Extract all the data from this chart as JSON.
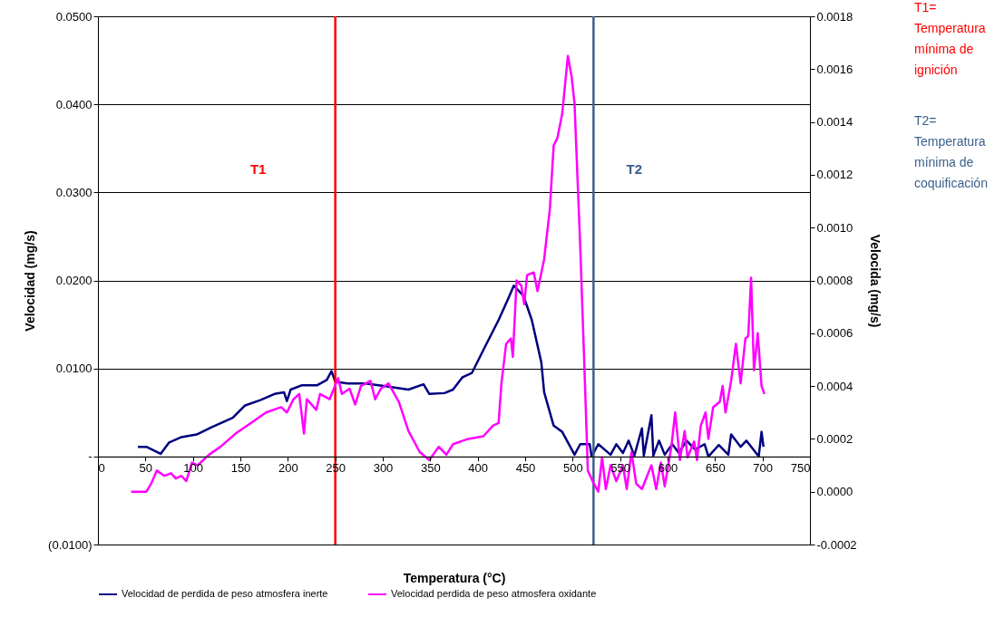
{
  "chart_data": {
    "type": "line",
    "xlabel": "Temperatura (°C)",
    "ylabel": "Velocidad (mg/s)",
    "y2label": "Velocida (mg/s)",
    "xlim": [
      0,
      750
    ],
    "xticks": [
      0,
      50,
      100,
      150,
      200,
      250,
      300,
      350,
      400,
      450,
      500,
      550,
      600,
      650,
      700,
      750
    ],
    "ylim": [
      -0.01,
      0.05
    ],
    "yticks": [
      {
        "value": -0.01,
        "label": "(0.0100)"
      },
      {
        "value": 0,
        "label": "-"
      },
      {
        "value": 0.01,
        "label": "0.0100"
      },
      {
        "value": 0.02,
        "label": "0.0200"
      },
      {
        "value": 0.03,
        "label": "0.0300"
      },
      {
        "value": 0.04,
        "label": "0.0400"
      },
      {
        "value": 0.05,
        "label": "0.0500"
      }
    ],
    "y2lim": [
      -0.0002,
      0.0018
    ],
    "y2ticks": [
      {
        "value": -0.0002,
        "label": "-0.0002"
      },
      {
        "value": 0,
        "label": "0.0000"
      },
      {
        "value": 0.0002,
        "label": "0.0002"
      },
      {
        "value": 0.0004,
        "label": "0.0004"
      },
      {
        "value": 0.0006,
        "label": "0.0006"
      },
      {
        "value": 0.0008,
        "label": "0.0008"
      },
      {
        "value": 0.001,
        "label": "0.0010"
      },
      {
        "value": 0.0012,
        "label": "0.0012"
      },
      {
        "value": 0.0014,
        "label": "0.0014"
      },
      {
        "value": 0.0016,
        "label": "0.0016"
      },
      {
        "value": 0.0018,
        "label": "0.0018"
      }
    ],
    "grid": "y",
    "legend": "bottom",
    "marker": "none",
    "line_style": "solid",
    "series": [
      {
        "name": "Velocidad de perdida de peso atmosfera inerte",
        "color": "#000080",
        "x": [
          42,
          51,
          66,
          75,
          88,
          104,
          119,
          142,
          155,
          171,
          186,
          196,
          199,
          203,
          215,
          231,
          241,
          246,
          250,
          263,
          282,
          301,
          327,
          343,
          349,
          365,
          374,
          384,
          394,
          406,
          422,
          432,
          438,
          448,
          457,
          467,
          470,
          480,
          489,
          502,
          508,
          518,
          520,
          527,
          540,
          546,
          553,
          559,
          565,
          573,
          575,
          583,
          585,
          591,
          597,
          605,
          612,
          620,
          629,
          639,
          643,
          654,
          664,
          667,
          677,
          683,
          696,
          699,
          701
        ],
        "values": [
          0.0011,
          0.0011,
          0.0003,
          0.0016,
          0.0022,
          0.0025,
          0.0033,
          0.0044,
          0.0058,
          0.0064,
          0.0071,
          0.0073,
          0.0063,
          0.0076,
          0.0081,
          0.0081,
          0.0087,
          0.0097,
          0.0085,
          0.0083,
          0.0083,
          0.008,
          0.0076,
          0.0082,
          0.0071,
          0.0072,
          0.0076,
          0.009,
          0.0095,
          0.0121,
          0.0155,
          0.0179,
          0.0194,
          0.0183,
          0.0155,
          0.0107,
          0.0073,
          0.0035,
          0.0028,
          0.0002,
          0.0014,
          0.0014,
          0.0,
          0.0014,
          0.0002,
          0.0014,
          0.0004,
          0.0018,
          0.0001,
          0.0032,
          0.0001,
          0.0047,
          0.0001,
          0.0018,
          0.0002,
          0.0014,
          0.0004,
          0.0018,
          0.0008,
          0.0014,
          0.0,
          0.0013,
          0.0002,
          0.0025,
          0.0011,
          0.0018,
          0.0,
          0.0028,
          0.0011
        ]
      },
      {
        "name": "Velocidad perdida de peso atmosfera oxidante",
        "color": "#ff00ff",
        "axis": "y2",
        "x": [
          35,
          51,
          56,
          62,
          70,
          77,
          82,
          88,
          93,
          99,
          105,
          117,
          129,
          145,
          161,
          177,
          193,
          199,
          206,
          212,
          217,
          220,
          230,
          234,
          244,
          253,
          257,
          265,
          271,
          277,
          287,
          292,
          298,
          306,
          317,
          327,
          339,
          349,
          359,
          367,
          374,
          390,
          406,
          416,
          422,
          425,
          430,
          435,
          437,
          441,
          446,
          449,
          452,
          459,
          463,
          470,
          476,
          480,
          484,
          489,
          495,
          499,
          502,
          508,
          513,
          516,
          521,
          527,
          531,
          535,
          540,
          546,
          553,
          557,
          562,
          567,
          573,
          583,
          588,
          593,
          597,
          604,
          608,
          613,
          618,
          621,
          628,
          631,
          635,
          640,
          643,
          648,
          655,
          658,
          661,
          667,
          672,
          677,
          682,
          685,
          688,
          691,
          695,
          699,
          702
        ],
        "values": [
          0.0,
          0.0,
          3e-05,
          8e-05,
          6e-05,
          7e-05,
          5e-05,
          6e-05,
          4e-05,
          0.00011,
          0.0001,
          0.00014,
          0.00017,
          0.00022,
          0.00026,
          0.0003,
          0.00032,
          0.0003,
          0.00035,
          0.00037,
          0.00022,
          0.00035,
          0.00031,
          0.00037,
          0.00035,
          0.00043,
          0.00037,
          0.00039,
          0.00033,
          0.0004,
          0.00042,
          0.00035,
          0.00039,
          0.00041,
          0.00034,
          0.00023,
          0.00015,
          0.00012,
          0.00017,
          0.00014,
          0.00018,
          0.0002,
          0.00021,
          0.00025,
          0.00026,
          0.00041,
          0.00056,
          0.00058,
          0.00051,
          0.0008,
          0.00078,
          0.00071,
          0.00082,
          0.00083,
          0.00076,
          0.00088,
          0.00107,
          0.00131,
          0.00134,
          0.00143,
          0.00165,
          0.00157,
          0.00147,
          0.00093,
          0.00041,
          8e-05,
          4e-05,
          0.0,
          0.00013,
          1e-05,
          0.0001,
          4e-05,
          0.0001,
          1e-05,
          0.00015,
          3e-05,
          1e-05,
          0.0001,
          1e-05,
          0.00011,
          2e-05,
          0.00017,
          0.0003,
          0.00012,
          0.00023,
          0.00013,
          0.00019,
          0.00012,
          0.00025,
          0.0003,
          0.0002,
          0.00032,
          0.00034,
          0.0004,
          0.0003,
          0.00042,
          0.00056,
          0.00041,
          0.00058,
          0.00059,
          0.00081,
          0.00046,
          0.0006,
          0.0004,
          0.00037
        ]
      }
    ],
    "ref_lines": [
      {
        "axis": "x",
        "value": 250,
        "label": "T1",
        "color": "#ff0000"
      },
      {
        "axis": "x",
        "value": 522,
        "label": "T2",
        "color": "#3a5f8a"
      }
    ],
    "annotations": [
      "T1= Temperatura mínima de ignición",
      "T2= Temperatura mínima de coquificación"
    ]
  }
}
